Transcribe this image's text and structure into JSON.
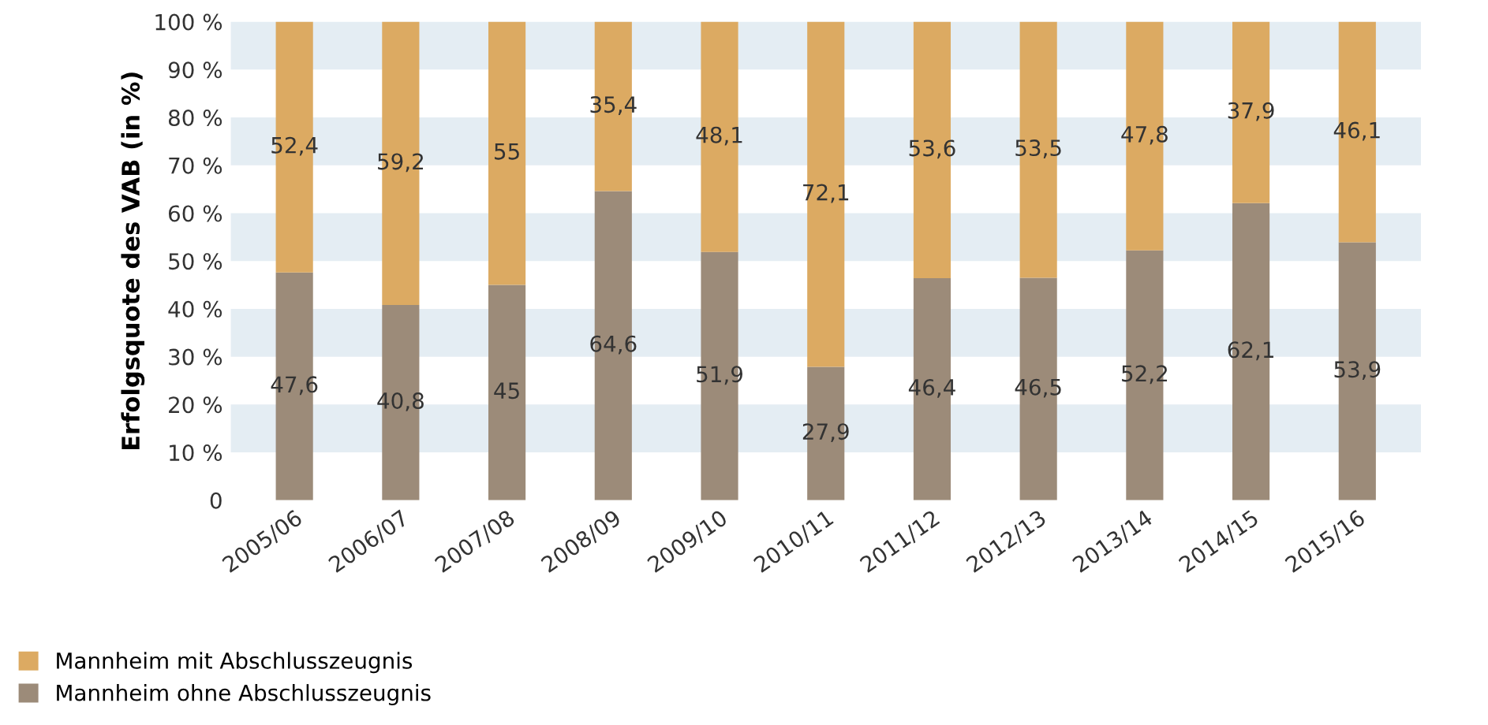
{
  "chart_data": {
    "type": "bar",
    "stacked": true,
    "ylabel": "Erfolgsquote des VAB (in %)",
    "categories": [
      "2005/06",
      "2006/07",
      "2007/08",
      "2008/09",
      "2009/10",
      "2010/11",
      "2011/12",
      "2012/13",
      "2013/14",
      "2014/15",
      "2015/16"
    ],
    "series": [
      {
        "name": "Mannheim ohne Abschlusszeugnis",
        "color": "#9c8b79",
        "values": [
          47.6,
          40.8,
          45,
          64.6,
          51.9,
          27.9,
          46.4,
          46.5,
          52.2,
          62.1,
          53.9
        ],
        "value_labels": [
          "47,6",
          "40,8",
          "45",
          "64,6",
          "51,9",
          "27,9",
          "46,4",
          "46,5",
          "52,2",
          "62,1",
          "53,9"
        ]
      },
      {
        "name": "Mannheim mit Abschlusszeugnis",
        "color": "#dcaa62",
        "values": [
          52.4,
          59.2,
          55,
          35.4,
          48.1,
          72.1,
          53.6,
          53.5,
          47.8,
          37.9,
          46.1
        ],
        "value_labels": [
          "52,4",
          "59,2",
          "55",
          "35,4",
          "48,1",
          "72,1",
          "53,6",
          "53,5",
          "47,8",
          "37,9",
          "46,1"
        ]
      }
    ],
    "ylim": [
      0,
      100
    ],
    "yticks": [
      {
        "value": 0,
        "label": "0"
      },
      {
        "value": 10,
        "label": "10 %"
      },
      {
        "value": 20,
        "label": "20 %"
      },
      {
        "value": 30,
        "label": "30 %"
      },
      {
        "value": 40,
        "label": "40 %"
      },
      {
        "value": 50,
        "label": "50 %"
      },
      {
        "value": 60,
        "label": "60 %"
      },
      {
        "value": 70,
        "label": "70 %"
      },
      {
        "value": 80,
        "label": "80 %"
      },
      {
        "value": 90,
        "label": "90 %"
      },
      {
        "value": 100,
        "label": "100 %"
      }
    ],
    "bands": [
      {
        "axis": "y",
        "from": 10,
        "to": 20,
        "color": "#e4edf3"
      },
      {
        "axis": "y",
        "from": 30,
        "to": 40,
        "color": "#e4edf3"
      },
      {
        "axis": "y",
        "from": 50,
        "to": 60,
        "color": "#e4edf3"
      },
      {
        "axis": "y",
        "from": 70,
        "to": 80,
        "color": "#e4edf3"
      },
      {
        "axis": "y",
        "from": 90,
        "to": 100,
        "color": "#e4edf3"
      }
    ],
    "legend": "bottom left"
  }
}
